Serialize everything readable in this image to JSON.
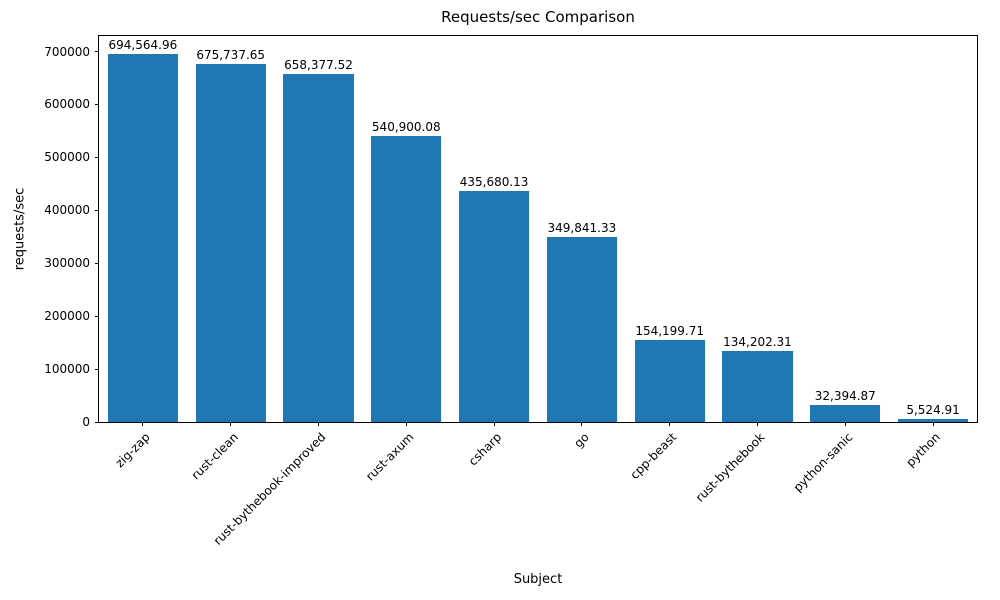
{
  "chart_data": {
    "type": "bar",
    "title": "Requests/sec Comparison",
    "xlabel": "Subject",
    "ylabel": "requests/sec",
    "categories": [
      "zig-zap",
      "rust-clean",
      "rust-bythebook-improved",
      "rust-axum",
      "csharp",
      "go",
      "cpp-beast",
      "rust-bythebook",
      "python-sanic",
      "python"
    ],
    "values": [
      694564.96,
      675737.65,
      658377.52,
      540900.08,
      435680.13,
      349841.33,
      154199.71,
      134202.31,
      32394.87,
      5524.91
    ],
    "value_labels": [
      "694,564.96",
      "675,737.65",
      "658,377.52",
      "540,900.08",
      "435,680.13",
      "349,841.33",
      "154,199.71",
      "134,202.31",
      "32,394.87",
      "5,524.91"
    ],
    "y_ticks": [
      0,
      100000,
      200000,
      300000,
      400000,
      500000,
      600000,
      700000
    ],
    "y_tick_labels": [
      "0",
      "100000",
      "200000",
      "300000",
      "400000",
      "500000",
      "600000",
      "700000"
    ],
    "ylim": [
      0,
      729293
    ],
    "bar_color": "#1f77b4",
    "grid": false,
    "legend": false
  }
}
